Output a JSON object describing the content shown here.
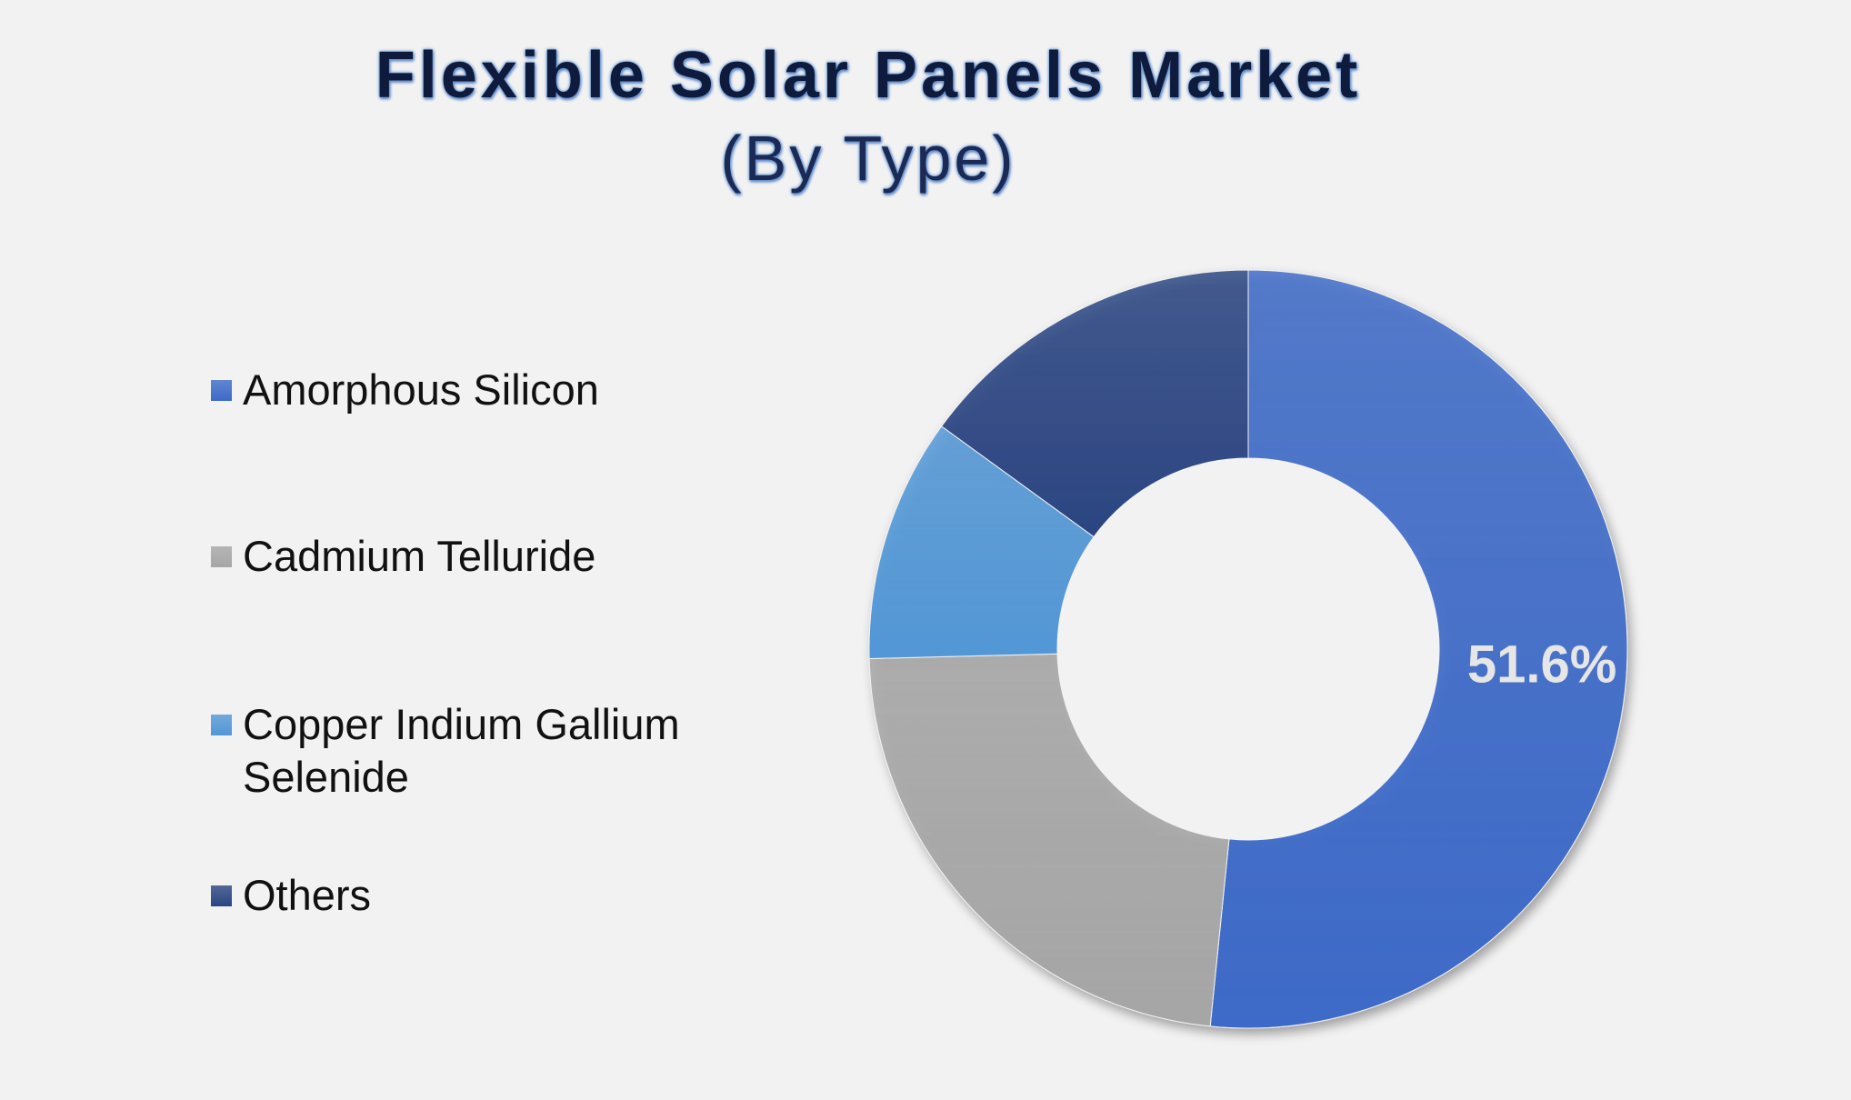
{
  "chart_data": {
    "type": "pie",
    "variant": "donut",
    "title": "Flexible Solar Panels Market",
    "subtitle": "(By Type)",
    "legend_position": "left",
    "categories": [
      "Amorphous Silicon",
      "Cadmium Telluride",
      "Copper Indium Gallium Selenide",
      "Others"
    ],
    "values": [
      51.6,
      23.0,
      10.4,
      15.0
    ],
    "value_unit": "%",
    "labels": [
      "51.6%",
      "",
      "",
      ""
    ],
    "colors": [
      "#3d6ac8",
      "#a6a6a6",
      "#5297d6",
      "#2b4582"
    ],
    "label_color": "#e6e6e6"
  }
}
